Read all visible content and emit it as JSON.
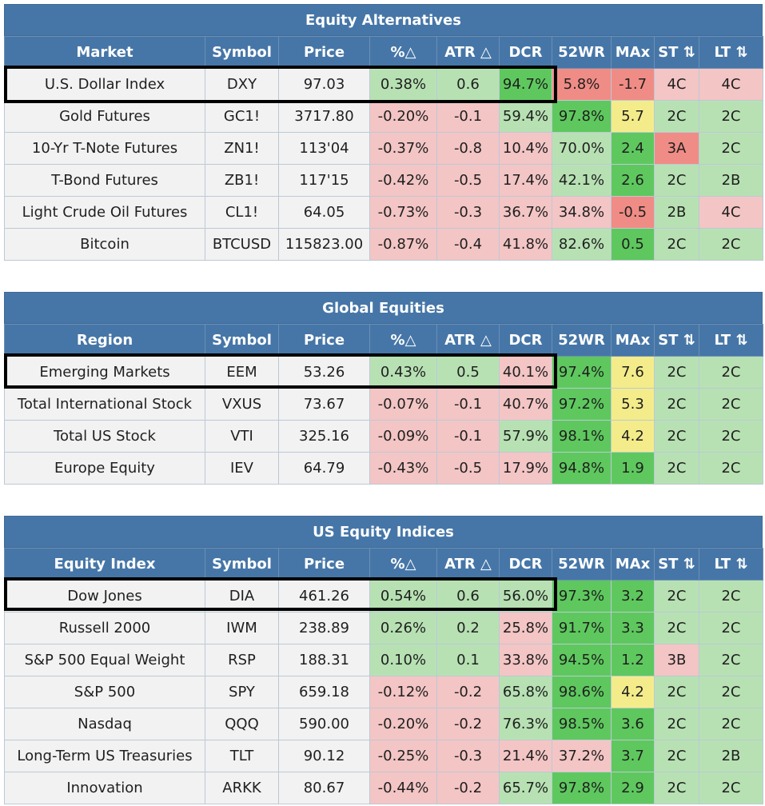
{
  "headers": [
    "Symbol",
    "Price",
    "%△",
    "ATR △",
    "DCR",
    "52WR",
    "MAx",
    "ST ⇅",
    "LT ⇅"
  ],
  "sections": [
    {
      "title": "Equity Alternatives",
      "first_header": "Market",
      "rows": [
        {
          "name": "U.S. Dollar Index",
          "symbol": "DXY",
          "price": "97.03",
          "pct": "0.38%",
          "atr": "0.6",
          "dcr": "94.7%",
          "wr52": "5.8%",
          "max": "-1.7",
          "st": "4C",
          "lt": "4C",
          "colors": [
            "lg",
            "lg",
            "g",
            "r",
            "r",
            "lr",
            "lr"
          ]
        },
        {
          "name": "Gold Futures",
          "symbol": "GC1!",
          "price": "3717.80",
          "pct": "-0.20%",
          "atr": "-0.1",
          "dcr": "59.4%",
          "wr52": "97.8%",
          "max": "5.7",
          "st": "2C",
          "lt": "2C",
          "colors": [
            "lr",
            "lr",
            "lg",
            "g",
            "y",
            "lg",
            "lg"
          ]
        },
        {
          "name": "10-Yr T-Note Futures",
          "symbol": "ZN1!",
          "price": "113'04",
          "pct": "-0.37%",
          "atr": "-0.8",
          "dcr": "10.4%",
          "wr52": "70.0%",
          "max": "2.4",
          "st": "3A",
          "lt": "2C",
          "colors": [
            "lr",
            "lr",
            "lr",
            "lg",
            "g",
            "r",
            "lg"
          ]
        },
        {
          "name": "T-Bond Futures",
          "symbol": "ZB1!",
          "price": "117'15",
          "pct": "-0.42%",
          "atr": "-0.5",
          "dcr": "17.4%",
          "wr52": "42.1%",
          "max": "2.6",
          "st": "2C",
          "lt": "2B",
          "colors": [
            "lr",
            "lr",
            "lr",
            "lg",
            "g",
            "lg",
            "lg"
          ]
        },
        {
          "name": "Light Crude Oil Futures",
          "symbol": "CL1!",
          "price": "64.05",
          "pct": "-0.73%",
          "atr": "-0.3",
          "dcr": "36.7%",
          "wr52": "34.8%",
          "max": "-0.5",
          "st": "2B",
          "lt": "4C",
          "colors": [
            "lr",
            "lr",
            "lr",
            "lr",
            "r",
            "lg",
            "lr"
          ]
        },
        {
          "name": "Bitcoin",
          "symbol": "BTCUSD",
          "price": "115823.00",
          "pct": "-0.87%",
          "atr": "-0.4",
          "dcr": "41.8%",
          "wr52": "82.6%",
          "max": "0.5",
          "st": "2C",
          "lt": "2C",
          "colors": [
            "lr",
            "lr",
            "lr",
            "lg",
            "g",
            "lg",
            "lg"
          ]
        }
      ]
    },
    {
      "title": "Global Equities",
      "first_header": "Region",
      "rows": [
        {
          "name": "Emerging Markets",
          "symbol": "EEM",
          "price": "53.26",
          "pct": "0.43%",
          "atr": "0.5",
          "dcr": "40.1%",
          "wr52": "97.4%",
          "max": "7.6",
          "st": "2C",
          "lt": "2C",
          "colors": [
            "lg",
            "lg",
            "lr",
            "g",
            "y",
            "lg",
            "lg"
          ]
        },
        {
          "name": "Total International Stock",
          "symbol": "VXUS",
          "price": "73.67",
          "pct": "-0.07%",
          "atr": "-0.1",
          "dcr": "40.7%",
          "wr52": "97.2%",
          "max": "5.3",
          "st": "2C",
          "lt": "2C",
          "colors": [
            "lr",
            "lr",
            "lr",
            "g",
            "y",
            "lg",
            "lg"
          ]
        },
        {
          "name": "Total US Stock",
          "symbol": "VTI",
          "price": "325.16",
          "pct": "-0.09%",
          "atr": "-0.1",
          "dcr": "57.9%",
          "wr52": "98.1%",
          "max": "4.2",
          "st": "2C",
          "lt": "2C",
          "colors": [
            "lr",
            "lr",
            "lg",
            "g",
            "y",
            "lg",
            "lg"
          ]
        },
        {
          "name": "Europe Equity",
          "symbol": "IEV",
          "price": "64.79",
          "pct": "-0.43%",
          "atr": "-0.5",
          "dcr": "17.9%",
          "wr52": "94.8%",
          "max": "1.9",
          "st": "2C",
          "lt": "2C",
          "colors": [
            "lr",
            "lr",
            "lr",
            "g",
            "g",
            "lg",
            "lg"
          ]
        }
      ]
    },
    {
      "title": "US Equity Indices",
      "first_header": "Equity Index",
      "rows": [
        {
          "name": "Dow Jones",
          "symbol": "DIA",
          "price": "461.26",
          "pct": "0.54%",
          "atr": "0.6",
          "dcr": "56.0%",
          "wr52": "97.3%",
          "max": "3.2",
          "st": "2C",
          "lt": "2C",
          "colors": [
            "lg",
            "lg",
            "lg",
            "g",
            "g",
            "lg",
            "lg"
          ]
        },
        {
          "name": "Russell 2000",
          "symbol": "IWM",
          "price": "238.89",
          "pct": "0.26%",
          "atr": "0.2",
          "dcr": "25.8%",
          "wr52": "91.7%",
          "max": "3.3",
          "st": "2C",
          "lt": "2C",
          "colors": [
            "lg",
            "lg",
            "lr",
            "g",
            "g",
            "lg",
            "lg"
          ]
        },
        {
          "name": "S&P 500 Equal Weight",
          "symbol": "RSP",
          "price": "188.31",
          "pct": "0.10%",
          "atr": "0.1",
          "dcr": "33.8%",
          "wr52": "94.5%",
          "max": "1.2",
          "st": "3B",
          "lt": "2C",
          "colors": [
            "lg",
            "lg",
            "lr",
            "g",
            "g",
            "lr",
            "lg"
          ]
        },
        {
          "name": "S&P 500",
          "symbol": "SPY",
          "price": "659.18",
          "pct": "-0.12%",
          "atr": "-0.2",
          "dcr": "65.8%",
          "wr52": "98.6%",
          "max": "4.2",
          "st": "2C",
          "lt": "2C",
          "colors": [
            "lr",
            "lr",
            "lg",
            "g",
            "y",
            "lg",
            "lg"
          ]
        },
        {
          "name": "Nasdaq",
          "symbol": "QQQ",
          "price": "590.00",
          "pct": "-0.20%",
          "atr": "-0.2",
          "dcr": "76.3%",
          "wr52": "98.5%",
          "max": "3.6",
          "st": "2C",
          "lt": "2C",
          "colors": [
            "lr",
            "lr",
            "lg",
            "g",
            "g",
            "lg",
            "lg"
          ]
        },
        {
          "name": "Long-Term US Treasuries",
          "symbol": "TLT",
          "price": "90.12",
          "pct": "-0.25%",
          "atr": "-0.3",
          "dcr": "21.4%",
          "wr52": "37.2%",
          "max": "3.7",
          "st": "2C",
          "lt": "2B",
          "colors": [
            "lr",
            "lr",
            "lr",
            "lr",
            "g",
            "lg",
            "lg"
          ]
        },
        {
          "name": "Innovation",
          "symbol": "ARKK",
          "price": "80.67",
          "pct": "-0.44%",
          "atr": "-0.2",
          "dcr": "65.7%",
          "wr52": "97.8%",
          "max": "2.9",
          "st": "2C",
          "lt": "2C",
          "colors": [
            "lr",
            "lr",
            "lg",
            "g",
            "g",
            "lg",
            "lg"
          ]
        }
      ]
    }
  ]
}
